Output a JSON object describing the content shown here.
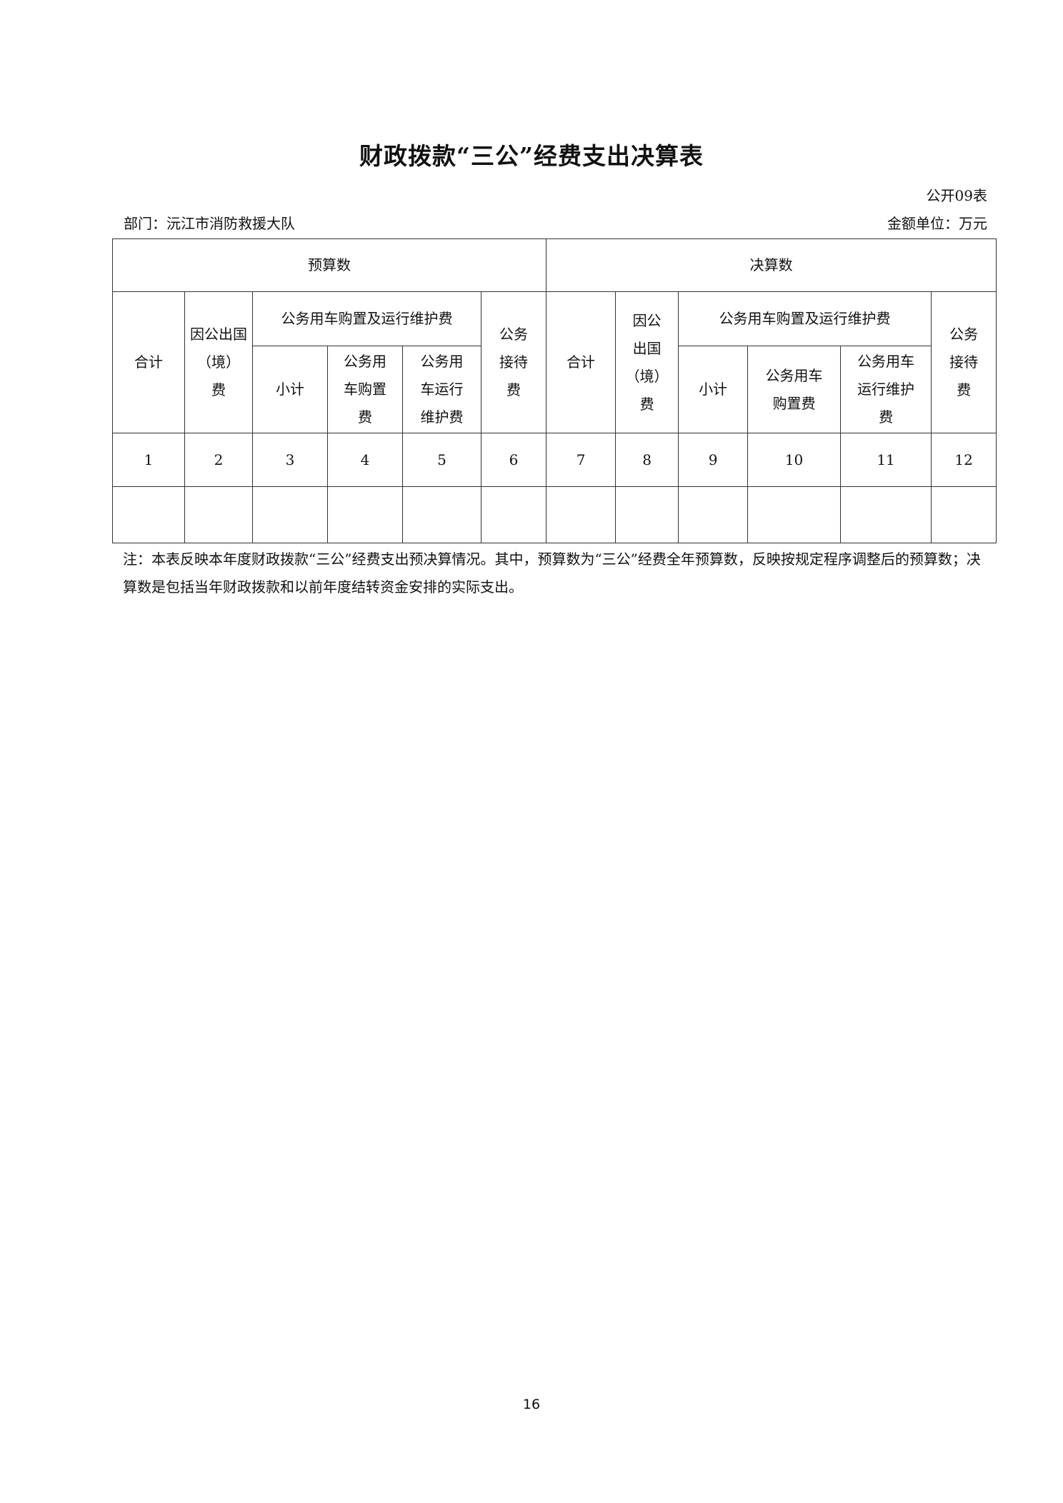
{
  "title": "财政拨款“三公”经费支出决算表",
  "form_no": "公开09表",
  "department": "部门：沅江市消防救援大队",
  "unit": "金额单位：万元",
  "table": {
    "groups": [
      "预算数",
      "决算数"
    ],
    "budget": {
      "total": [
        "合计"
      ],
      "abroad": [
        "因公出国",
        "（境）",
        "费"
      ],
      "vehicle_group": "公务用车购置及运行维护费",
      "subtotal": [
        "小计"
      ],
      "purchase": [
        "公务用",
        "车购置",
        "费"
      ],
      "operation": [
        "公务用",
        "车运行",
        "维护费"
      ],
      "reception": [
        "公务",
        "接待",
        "费"
      ]
    },
    "final": {
      "total": [
        "合计"
      ],
      "abroad": [
        "因公",
        "出国",
        "（境）",
        "费"
      ],
      "vehicle_group": "公务用车购置及运行维护费",
      "subtotal": [
        "小计"
      ],
      "purchase": [
        "公务用车",
        "购置费"
      ],
      "operation": [
        "公务用车",
        "运行维护",
        "费"
      ],
      "reception": [
        "公务",
        "接待",
        "费"
      ]
    },
    "column_numbers": [
      "1",
      "2",
      "3",
      "4",
      "5",
      "6",
      "7",
      "8",
      "9",
      "10",
      "11",
      "12"
    ],
    "values": [
      "",
      "",
      "",
      "",
      "",
      "",
      "",
      "",
      "",
      "",
      "",
      ""
    ]
  },
  "note": "注：本表反映本年度财政拨款“三公”经费支出预决算情况。其中，预算数为“三公”经费全年预算数，反映按规定程序调整后的预算数；决算数是包括当年财政拨款和以前年度结转资金安排的实际支出。",
  "page_number": "16"
}
